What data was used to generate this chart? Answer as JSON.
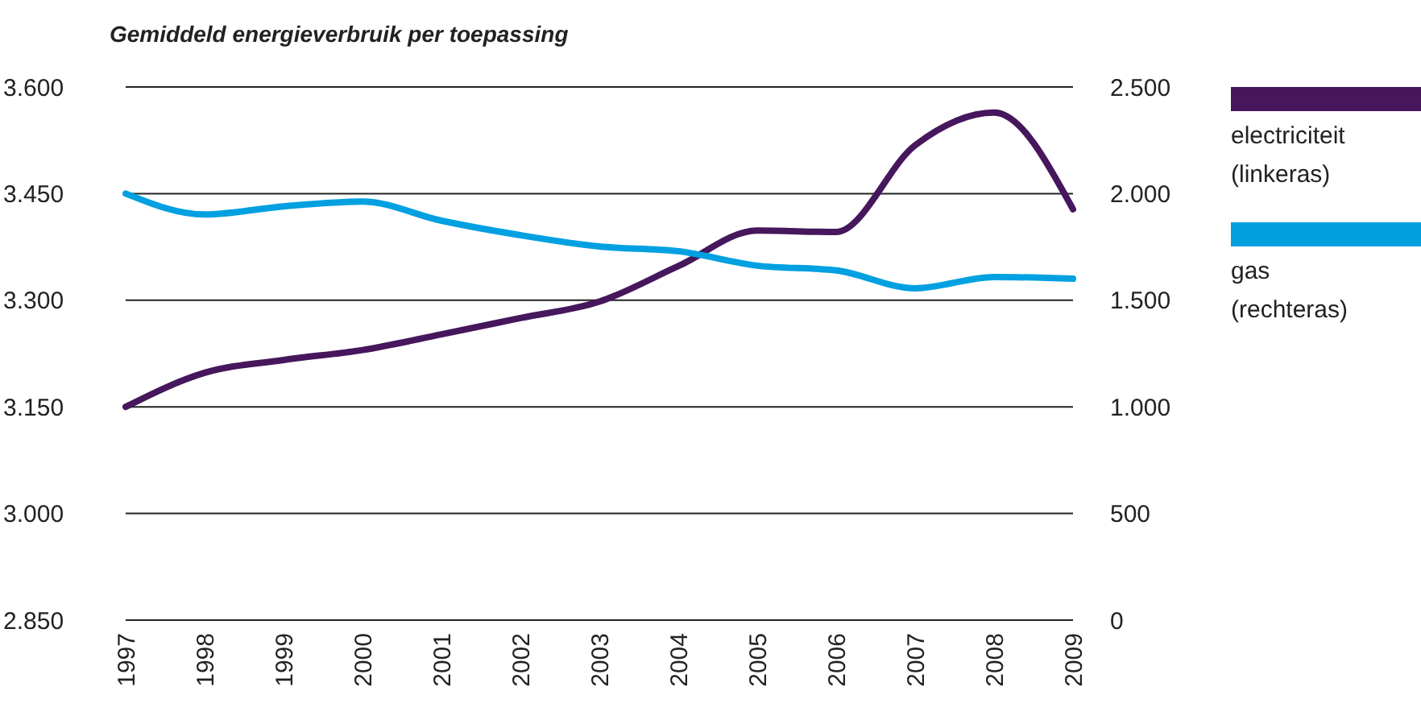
{
  "chart_data": {
    "type": "line",
    "title": "Gemiddeld energieverbruik per toepassing",
    "categories": [
      "1997",
      "1998",
      "1999",
      "2000",
      "2001",
      "2002",
      "2003",
      "2004",
      "2005",
      "2006",
      "2007",
      "2008",
      "2009"
    ],
    "series": [
      {
        "name": "electriciteit (linkeras)",
        "color": "#46175c",
        "values": [
          3150,
          3198,
          3216,
          3230,
          3252,
          3275,
          3298,
          3348,
          3398,
          3396,
          3518,
          3564,
          3428
        ]
      },
      {
        "name": "gas (rechteras)",
        "color": "#00a0e1",
        "axis": "y2",
        "values": [
          2000,
          1902,
          1940,
          1963,
          1873,
          1805,
          1752,
          1730,
          1662,
          1640,
          1556,
          1609,
          1601
        ]
      }
    ],
    "ylim": [
      2850,
      3600
    ],
    "yticks": [
      {
        "value": 2850,
        "label": "2.850"
      },
      {
        "value": 3000,
        "label": "3.000"
      },
      {
        "value": 3150,
        "label": "3.150"
      },
      {
        "value": 3300,
        "label": "3.300"
      },
      {
        "value": 3450,
        "label": "3.450"
      },
      {
        "value": 3600,
        "label": "3.600"
      }
    ],
    "y2lim": [
      0,
      2500
    ],
    "y2ticks": [
      0,
      500,
      {
        "value": 1000,
        "label": "1.000"
      },
      {
        "value": 1500,
        "label": "1.500"
      },
      {
        "value": 2000,
        "label": "2.000"
      },
      {
        "value": 2500,
        "label": "2.500"
      }
    ],
    "grid": "y",
    "legend": "right",
    "marker": "none",
    "line_style": "solid"
  }
}
